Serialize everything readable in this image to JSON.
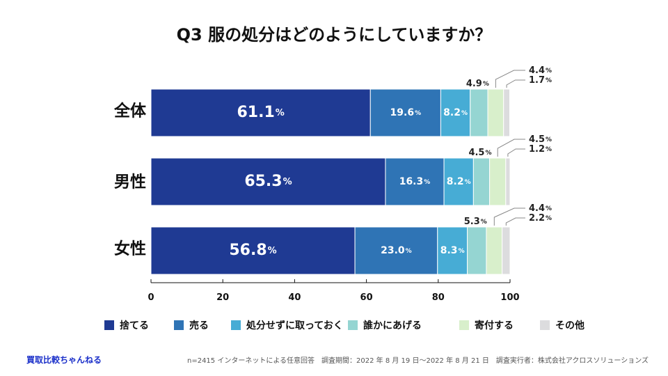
{
  "chart_data": {
    "type": "bar",
    "orientation": "horizontal",
    "stacked": true,
    "title": "Q3 服の処分はどのようにしていますか？",
    "categories": [
      "全体",
      "男性",
      "女性"
    ],
    "series": [
      {
        "name": "捨てる",
        "color": "#1f3a93",
        "values": [
          61.1,
          65.3,
          56.8
        ]
      },
      {
        "name": "売る",
        "color": "#2f74b5",
        "values": [
          19.6,
          16.3,
          23.0
        ]
      },
      {
        "name": "処分せずに取っておく",
        "color": "#47acd5",
        "values": [
          8.2,
          8.2,
          8.3
        ]
      },
      {
        "name": "誰かにあげる",
        "color": "#95d5d2",
        "values": [
          4.9,
          4.5,
          5.3
        ]
      },
      {
        "name": "寄付する",
        "color": "#d8efcb",
        "values": [
          4.4,
          4.5,
          4.4
        ]
      },
      {
        "name": "その他",
        "color": "#dcdcde",
        "values": [
          1.7,
          1.2,
          2.2
        ]
      }
    ],
    "value_labels": [
      [
        "61.1",
        "19.6",
        "8.2",
        "4.9",
        "4.4",
        "1.7"
      ],
      [
        "65.3",
        "16.3",
        "8.2",
        "4.5",
        "4.5",
        "1.2"
      ],
      [
        "56.8",
        "23.0",
        "8.3",
        "5.3",
        "4.4",
        "2.2"
      ]
    ],
    "unit": "%",
    "xlim": [
      0,
      100
    ],
    "xticks": [
      "0",
      "20",
      "40",
      "60",
      "80",
      "100"
    ],
    "legend_position": "bottom"
  },
  "footer": {
    "brand": "買取比較ちゃんねる",
    "note": "n=2415 インターネットによる任意回答　調査期間：2022 年 8 月 19 日〜2022 年 8 月 21 日　調査実行者：株式会社アクロスソリューションズ"
  }
}
